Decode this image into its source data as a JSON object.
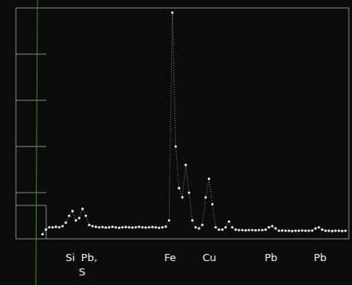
{
  "chart_data": {
    "type": "line",
    "marker": "dot",
    "line_style": "dotted",
    "color": "#e6e6e6",
    "tick_labels": false,
    "grid": false,
    "xlim": [
      0,
      100
    ],
    "ylim": [
      0,
      100
    ],
    "x": [
      8,
      9,
      10,
      11,
      12,
      13,
      14,
      15,
      16,
      17,
      18,
      19,
      20,
      21,
      22,
      23,
      24,
      25,
      26,
      27,
      28,
      29,
      30,
      31,
      32,
      33,
      34,
      35,
      36,
      37,
      38,
      39,
      40,
      41,
      42,
      43,
      44,
      45,
      46,
      47,
      48,
      49,
      50,
      51,
      52,
      53,
      54,
      55,
      56,
      57,
      58,
      59,
      60,
      61,
      62,
      63,
      64,
      65,
      66,
      67,
      68,
      69,
      70,
      71,
      72,
      73,
      74,
      75,
      76,
      77,
      78,
      79,
      80,
      81,
      82,
      83,
      84,
      85,
      86,
      87,
      88,
      89,
      90,
      91,
      92,
      93,
      94,
      95,
      96,
      97,
      98,
      99
    ],
    "values": [
      2,
      4,
      5,
      5,
      5.2,
      5,
      5.5,
      7,
      10,
      12,
      8,
      9,
      13,
      10,
      6,
      5.5,
      5.2,
      5,
      5.1,
      4.9,
      5,
      5.2,
      5,
      4.8,
      5,
      5.1,
      5,
      4.9,
      5,
      5.2,
      5,
      4.9,
      5,
      5.1,
      5,
      4.8,
      5,
      5.3,
      8,
      98,
      40,
      22,
      18,
      32,
      20,
      8,
      5,
      4.5,
      6,
      18,
      26,
      15,
      5,
      4,
      4,
      5,
      7.5,
      5,
      4,
      3.8,
      3.8,
      3.7,
      3.8,
      3.8,
      3.7,
      3.8,
      3.8,
      4,
      5,
      5.5,
      4.5,
      3.5,
      3.6,
      3.5,
      3.5,
      3.4,
      3.5,
      3.5,
      3.6,
      3.5,
      3.5,
      3.6,
      4.5,
      5,
      4,
      3.5,
      3.5,
      3.4,
      3.5,
      3.5,
      3.4,
      3.5
    ],
    "annotations": [
      {
        "text": "Si",
        "x": 16.3
      },
      {
        "text": "Pb,",
        "x": 22
      },
      {
        "text": "S",
        "x": 19.9
      },
      {
        "text": "Fe",
        "x": 46.3
      },
      {
        "text": "Cu",
        "x": 58.1
      },
      {
        "text": "Pb",
        "x": 76.6
      },
      {
        "text": "Pb",
        "x": 91.4
      }
    ]
  }
}
